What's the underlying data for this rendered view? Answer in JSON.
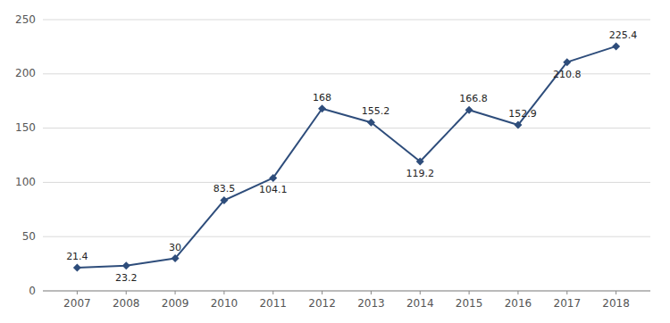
{
  "chart_data": {
    "type": "line",
    "x": [
      2007,
      2008,
      2009,
      2010,
      2011,
      2012,
      2013,
      2014,
      2015,
      2016,
      2017,
      2018
    ],
    "values": [
      21.4,
      23.2,
      30,
      83.5,
      104.1,
      168,
      155.2,
      119.2,
      166.8,
      152.9,
      210.8,
      225.4
    ],
    "color": "#2E4D7B",
    "marker": "diamond",
    "data_labels": true,
    "xlim": [
      2006.3,
      2018.7
    ],
    "xticks": [
      2007,
      2008,
      2009,
      2010,
      2011,
      2012,
      2013,
      2014,
      2015,
      2016,
      2017,
      2018
    ],
    "ylim": [
      0,
      250
    ],
    "yticks": [
      0,
      50,
      100,
      150,
      200,
      250
    ],
    "grid": true
  }
}
